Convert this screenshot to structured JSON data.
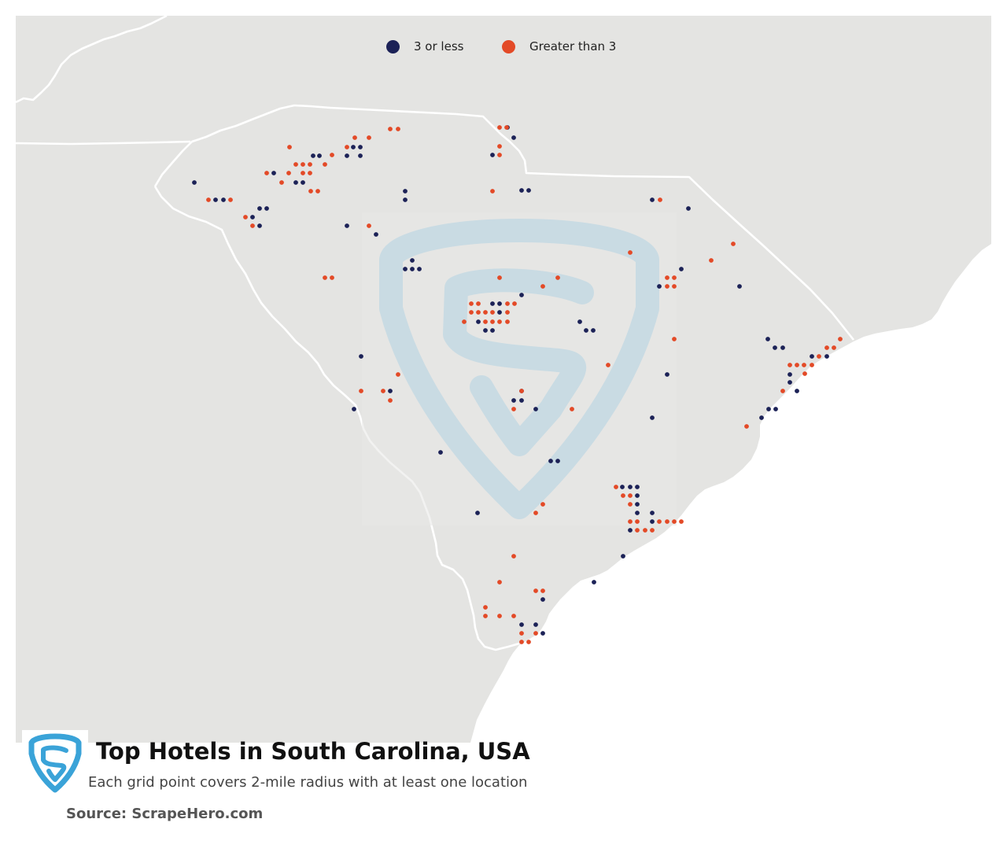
{
  "legend": {
    "items": [
      {
        "label": "3 or less",
        "color": "#1c2257"
      },
      {
        "label": "Greater than 3",
        "color": "#e34a27"
      }
    ]
  },
  "title": "Top Hotels in South Carolina, USA",
  "subtitle": "Each grid point covers 2-mile radius with at least one location",
  "source": "Source: ScrapeHero.com",
  "colors": {
    "land": "#e4e4e2",
    "water": "#ffffff",
    "border": "#ffffff",
    "low": "#1c2257",
    "high": "#e34a27",
    "watermark": "#c9dbe3",
    "logo": "#3aa3d8"
  },
  "map": {
    "region": "South Carolina",
    "points_low": [
      [
        645,
        162
      ],
      [
        653,
        175
      ],
      [
        663,
        242
      ],
      [
        672,
        242
      ],
      [
        626,
        197
      ],
      [
        515,
        243
      ],
      [
        515,
        254
      ],
      [
        829,
        254
      ],
      [
        875,
        265
      ],
      [
        398,
        198
      ],
      [
        458,
        198
      ],
      [
        449,
        187
      ],
      [
        458,
        187
      ],
      [
        441,
        198
      ],
      [
        376,
        232
      ],
      [
        385,
        232
      ],
      [
        406,
        198
      ],
      [
        348,
        220
      ],
      [
        247,
        232
      ],
      [
        274,
        254
      ],
      [
        284,
        254
      ],
      [
        330,
        265
      ],
      [
        339,
        265
      ],
      [
        321,
        276
      ],
      [
        330,
        287
      ],
      [
        441,
        287
      ],
      [
        478,
        298
      ],
      [
        524,
        331
      ],
      [
        515,
        342
      ],
      [
        524,
        342
      ],
      [
        533,
        342
      ],
      [
        635,
        386
      ],
      [
        663,
        375
      ],
      [
        635,
        397
      ],
      [
        626,
        386
      ],
      [
        608,
        409
      ],
      [
        617,
        420
      ],
      [
        626,
        420
      ],
      [
        737,
        409
      ],
      [
        745,
        420
      ],
      [
        754,
        420
      ],
      [
        838,
        364
      ],
      [
        866,
        342
      ],
      [
        940,
        364
      ],
      [
        976,
        431
      ],
      [
        985,
        442
      ],
      [
        995,
        442
      ],
      [
        1032,
        453
      ],
      [
        1051,
        453
      ],
      [
        1004,
        476
      ],
      [
        1004,
        486
      ],
      [
        977,
        520
      ],
      [
        968,
        531
      ],
      [
        986,
        520
      ],
      [
        1013,
        497
      ],
      [
        459,
        453
      ],
      [
        496,
        497
      ],
      [
        450,
        520
      ],
      [
        653,
        509
      ],
      [
        663,
        509
      ],
      [
        681,
        520
      ],
      [
        663,
        497
      ],
      [
        848,
        476
      ],
      [
        829,
        531
      ],
      [
        560,
        575
      ],
      [
        700,
        586
      ],
      [
        709,
        586
      ],
      [
        607,
        652
      ],
      [
        791,
        619
      ],
      [
        801,
        619
      ],
      [
        810,
        619
      ],
      [
        810,
        630
      ],
      [
        810,
        641
      ],
      [
        810,
        652
      ],
      [
        829,
        652
      ],
      [
        801,
        674
      ],
      [
        829,
        663
      ],
      [
        792,
        707
      ],
      [
        755,
        740
      ],
      [
        690,
        762
      ],
      [
        663,
        794
      ],
      [
        681,
        794
      ],
      [
        690,
        805
      ]
    ],
    "points_high": [
      [
        635,
        162
      ],
      [
        644,
        162
      ],
      [
        635,
        186
      ],
      [
        635,
        197
      ],
      [
        496,
        164
      ],
      [
        506,
        164
      ],
      [
        451,
        175
      ],
      [
        469,
        175
      ],
      [
        441,
        187
      ],
      [
        422,
        197
      ],
      [
        368,
        187
      ],
      [
        376,
        209
      ],
      [
        385,
        209
      ],
      [
        394,
        209
      ],
      [
        413,
        209
      ],
      [
        339,
        220
      ],
      [
        367,
        220
      ],
      [
        385,
        220
      ],
      [
        394,
        220
      ],
      [
        358,
        232
      ],
      [
        395,
        243
      ],
      [
        404,
        243
      ],
      [
        265,
        254
      ],
      [
        293,
        254
      ],
      [
        312,
        276
      ],
      [
        321,
        287
      ],
      [
        469,
        287
      ],
      [
        626,
        243
      ],
      [
        839,
        254
      ],
      [
        801,
        321
      ],
      [
        904,
        331
      ],
      [
        932,
        310
      ],
      [
        848,
        353
      ],
      [
        857,
        353
      ],
      [
        848,
        364
      ],
      [
        857,
        364
      ],
      [
        413,
        353
      ],
      [
        422,
        353
      ],
      [
        635,
        353
      ],
      [
        690,
        364
      ],
      [
        709,
        353
      ],
      [
        599,
        386
      ],
      [
        608,
        386
      ],
      [
        645,
        386
      ],
      [
        654,
        386
      ],
      [
        599,
        397
      ],
      [
        608,
        397
      ],
      [
        617,
        397
      ],
      [
        626,
        397
      ],
      [
        645,
        397
      ],
      [
        590,
        409
      ],
      [
        617,
        409
      ],
      [
        626,
        409
      ],
      [
        635,
        409
      ],
      [
        645,
        409
      ],
      [
        857,
        431
      ],
      [
        773,
        464
      ],
      [
        506,
        476
      ],
      [
        459,
        497
      ],
      [
        487,
        497
      ],
      [
        496,
        509
      ],
      [
        663,
        497
      ],
      [
        653,
        520
      ],
      [
        727,
        520
      ],
      [
        949,
        542
      ],
      [
        1068,
        431
      ],
      [
        1051,
        442
      ],
      [
        1060,
        442
      ],
      [
        1041,
        453
      ],
      [
        1004,
        464
      ],
      [
        1013,
        464
      ],
      [
        1022,
        464
      ],
      [
        1032,
        464
      ],
      [
        995,
        497
      ],
      [
        1023,
        475
      ],
      [
        783,
        619
      ],
      [
        792,
        630
      ],
      [
        801,
        630
      ],
      [
        801,
        641
      ],
      [
        801,
        663
      ],
      [
        810,
        663
      ],
      [
        838,
        663
      ],
      [
        848,
        663
      ],
      [
        857,
        663
      ],
      [
        866,
        663
      ],
      [
        810,
        674
      ],
      [
        820,
        674
      ],
      [
        829,
        674
      ],
      [
        690,
        641
      ],
      [
        681,
        652
      ],
      [
        653,
        707
      ],
      [
        635,
        740
      ],
      [
        681,
        751
      ],
      [
        690,
        751
      ],
      [
        617,
        772
      ],
      [
        617,
        783
      ],
      [
        635,
        783
      ],
      [
        653,
        783
      ],
      [
        663,
        805
      ],
      [
        681,
        805
      ],
      [
        663,
        816
      ],
      [
        672,
        816
      ]
    ]
  }
}
